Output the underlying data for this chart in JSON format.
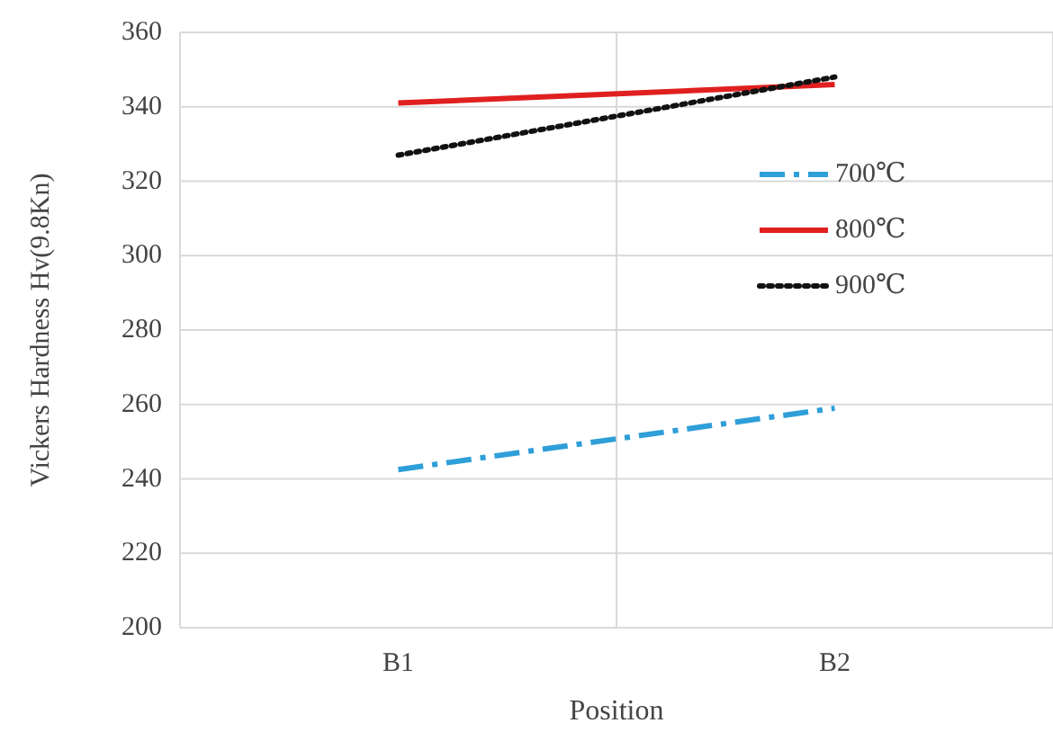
{
  "chart_data": {
    "type": "line",
    "xlabel": "Position",
    "ylabel": "Vickers  Hardness  Hv(9.8Kn)",
    "categories": [
      "B1",
      "B2"
    ],
    "series": [
      {
        "name": "700℃",
        "color": "#2e9fd8",
        "values": [
          242.5,
          259
        ],
        "line_style": "dashdot"
      },
      {
        "name": "800℃",
        "color": "#e02020",
        "values": [
          341,
          346
        ],
        "line_style": "solid"
      },
      {
        "name": "900℃",
        "color": "#111111",
        "values": [
          327,
          348
        ],
        "line_style": "dotted"
      }
    ],
    "ylim": [
      200,
      360
    ],
    "yticks": [
      200,
      220,
      240,
      260,
      280,
      300,
      320,
      340,
      360
    ],
    "grid": true,
    "legend": "right",
    "marker": "none"
  }
}
